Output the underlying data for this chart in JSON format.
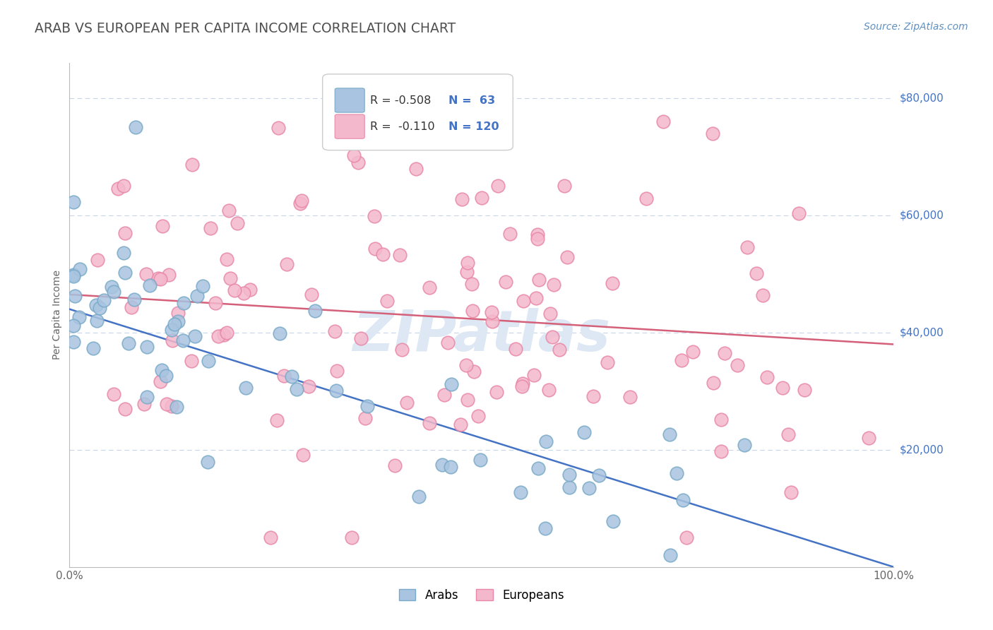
{
  "title": "ARAB VS EUROPEAN PER CAPITA INCOME CORRELATION CHART",
  "source": "Source: ZipAtlas.com",
  "ylabel": "Per Capita Income",
  "arab_color": "#a8c4e0",
  "arab_edge_color": "#7aaac8",
  "euro_color": "#f4b8cc",
  "euro_edge_color": "#e888a8",
  "arab_line_color": "#4472c4",
  "euro_line_color": "#d4607a",
  "background_color": "#ffffff",
  "grid_color": "#c8d4e8",
  "title_color": "#505050",
  "source_color": "#6090c0",
  "right_label_color": "#4472c4",
  "watermark_color": "#dde8f4",
  "arab_r": "R = -0.508",
  "arab_n": "N =  63",
  "euro_r": "R =  -0.110",
  "euro_n": "N = 120",
  "arab_intercept": 44000,
  "arab_slope": -44000,
  "euro_intercept": 46500,
  "euro_slope": -8500,
  "ytick_vals": [
    20000,
    40000,
    60000,
    80000
  ],
  "ytick_labels": [
    "$20,000",
    "$40,000",
    "$60,000",
    "$80,000"
  ],
  "xlim": [
    0.0,
    1.0
  ],
  "ylim": [
    0,
    86000
  ]
}
